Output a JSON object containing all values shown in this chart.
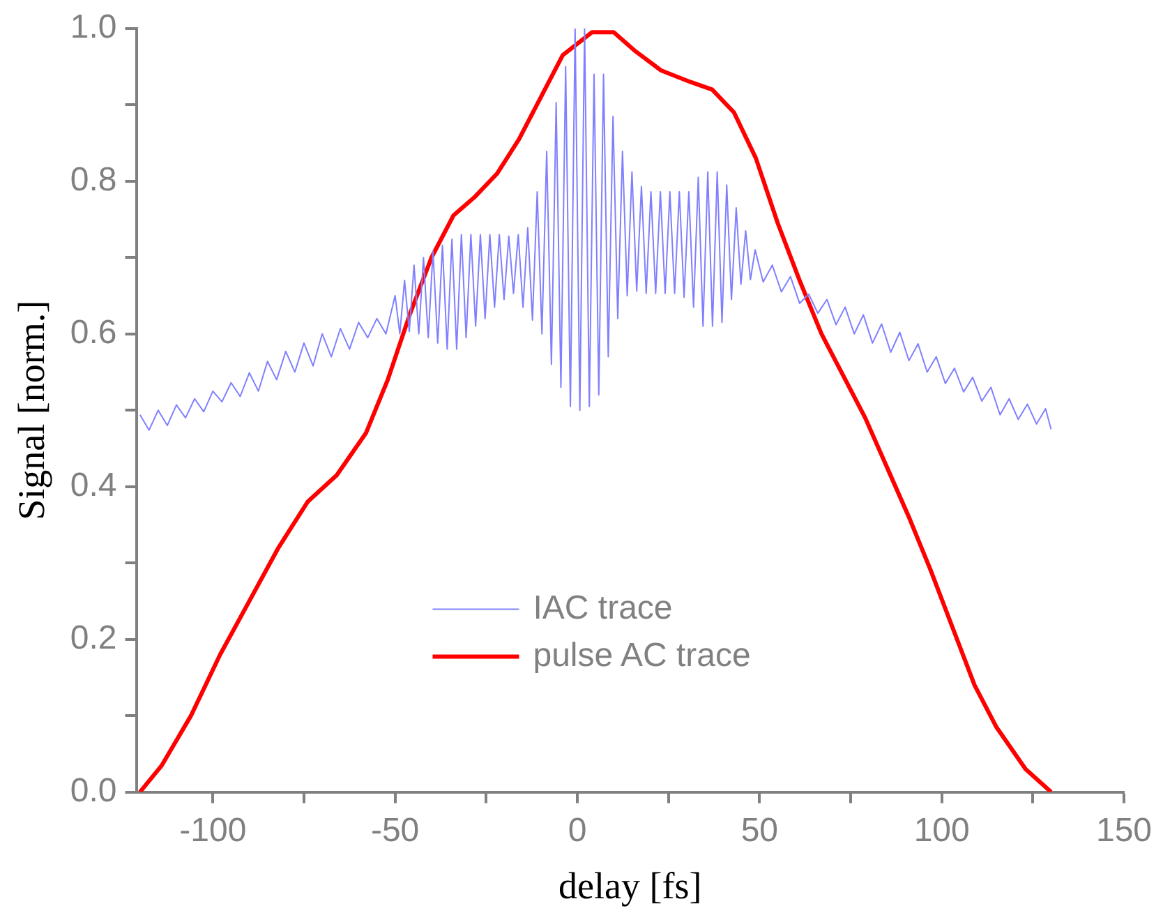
{
  "chart_data": {
    "type": "line",
    "xlabel": "delay [fs]",
    "ylabel": "Signal [norm.]",
    "xlim": [
      -121,
      150
    ],
    "xticks": [
      -100,
      {
        "value": -75,
        "label": null
      },
      -50,
      {
        "value": -25,
        "label": null
      },
      0,
      {
        "value": 25,
        "label": null
      },
      50,
      {
        "value": 75,
        "label": null
      },
      100,
      {
        "value": 125,
        "label": null
      },
      150
    ],
    "ylim": [
      0,
      1
    ],
    "yticks": [
      {
        "value": 0,
        "label": "0.0"
      },
      {
        "value": 0.1,
        "label": null
      },
      {
        "value": 0.2,
        "label": "0.2"
      },
      {
        "value": 0.3,
        "label": null
      },
      {
        "value": 0.4,
        "label": "0.4"
      },
      {
        "value": 0.5,
        "label": null
      },
      {
        "value": 0.6,
        "label": "0.6"
      },
      {
        "value": 0.7,
        "label": null
      },
      {
        "value": 0.8,
        "label": "0.8"
      },
      {
        "value": 0.9,
        "label": null
      },
      {
        "value": 1,
        "label": "1.0"
      }
    ],
    "grid": false,
    "legend": "bottom",
    "marker": "none",
    "line_style": "solid",
    "series": [
      {
        "name": "IAC trace",
        "color": "#8080ff",
        "x": [
          -120,
          -117.5,
          -115,
          -112.5,
          -110,
          -107.5,
          -105,
          -102.5,
          -100,
          -97.5,
          -95,
          -92.5,
          -90,
          -87.5,
          -85,
          -82.5,
          -80,
          -77.5,
          -75,
          -72.5,
          -70,
          -67.5,
          -65,
          -62.5,
          -60,
          -57.5,
          -55,
          -52.5,
          -50,
          -48.7,
          -47.4,
          -46.1,
          -44.8,
          -43.5,
          -42.2,
          -40.9,
          -39.6,
          -38.3,
          -37,
          -35.7,
          -34.4,
          -33.1,
          -31.8,
          -30.5,
          -29.2,
          -27.9,
          -26.6,
          -25.3,
          -24,
          -22.7,
          -21.4,
          -20.1,
          -18.8,
          -17.5,
          -16.2,
          -14.9,
          -13.6,
          -12.3,
          -11,
          -9.7,
          -8.4,
          -7.1,
          -5.8,
          -4.5,
          -3.2,
          -1.9,
          -0.6,
          0.7,
          2,
          3.3,
          4.6,
          5.9,
          7.2,
          8.5,
          9.8,
          11.1,
          12.4,
          13.7,
          15,
          16.3,
          17.6,
          18.9,
          20.2,
          21.5,
          22.8,
          24.1,
          25.4,
          26.7,
          28,
          29.3,
          30.6,
          31.9,
          33.2,
          34.5,
          35.8,
          37.1,
          38.4,
          39.7,
          41,
          42.3,
          43.6,
          44.9,
          46.2,
          47.5,
          48.8,
          51,
          53.5,
          56,
          58.5,
          61,
          63.5,
          66,
          68.5,
          71,
          73.5,
          76,
          78.5,
          81,
          83.5,
          86,
          88.5,
          91,
          93.5,
          96,
          98.5,
          101,
          103.5,
          106,
          108.5,
          111,
          113.5,
          116,
          118.5,
          121,
          123.5,
          126,
          128.5,
          130
        ],
        "values": [
          0.494,
          0.474,
          0.5,
          0.48,
          0.507,
          0.49,
          0.515,
          0.498,
          0.525,
          0.511,
          0.536,
          0.518,
          0.549,
          0.525,
          0.564,
          0.54,
          0.577,
          0.55,
          0.588,
          0.558,
          0.6,
          0.57,
          0.607,
          0.58,
          0.615,
          0.595,
          0.62,
          0.6,
          0.65,
          0.6,
          0.67,
          0.603,
          0.69,
          0.6,
          0.7,
          0.595,
          0.708,
          0.588,
          0.716,
          0.58,
          0.724,
          0.58,
          0.73,
          0.595,
          0.73,
          0.61,
          0.73,
          0.62,
          0.73,
          0.635,
          0.73,
          0.645,
          0.728,
          0.653,
          0.73,
          0.635,
          0.739,
          0.618,
          0.786,
          0.6,
          0.839,
          0.56,
          0.903,
          0.53,
          0.95,
          0.505,
          1.0,
          0.5,
          1.0,
          0.505,
          0.94,
          0.52,
          0.94,
          0.57,
          0.885,
          0.62,
          0.839,
          0.65,
          0.812,
          0.656,
          0.793,
          0.653,
          0.786,
          0.653,
          0.786,
          0.653,
          0.786,
          0.653,
          0.786,
          0.648,
          0.786,
          0.635,
          0.805,
          0.61,
          0.812,
          0.61,
          0.812,
          0.615,
          0.795,
          0.645,
          0.765,
          0.665,
          0.735,
          0.671,
          0.71,
          0.668,
          0.69,
          0.655,
          0.675,
          0.64,
          0.652,
          0.627,
          0.645,
          0.612,
          0.635,
          0.6,
          0.625,
          0.588,
          0.613,
          0.576,
          0.602,
          0.565,
          0.587,
          0.55,
          0.57,
          0.535,
          0.555,
          0.524,
          0.543,
          0.512,
          0.53,
          0.494,
          0.515,
          0.488,
          0.508,
          0.482,
          0.502,
          0.475
        ]
      },
      {
        "name": "pulse AC trace",
        "color": "#ff0000",
        "x": [
          -120,
          -114,
          -106,
          -98,
          -90,
          -82,
          -74,
          -66,
          -58,
          -52,
          -46,
          -40,
          -34,
          -28,
          -22,
          -16,
          -10,
          -4,
          4,
          10,
          16,
          23,
          31,
          37,
          43,
          49,
          55,
          61,
          67,
          73,
          79,
          85,
          91,
          97,
          103,
          109,
          115,
          123,
          130
        ],
        "values": [
          0,
          0.035,
          0.1,
          0.18,
          0.25,
          0.32,
          0.38,
          0.415,
          0.47,
          0.54,
          0.625,
          0.7,
          0.755,
          0.78,
          0.81,
          0.855,
          0.91,
          0.965,
          0.995,
          0.995,
          0.97,
          0.945,
          0.93,
          0.92,
          0.89,
          0.83,
          0.745,
          0.67,
          0.6,
          0.545,
          0.49,
          0.425,
          0.36,
          0.29,
          0.215,
          0.14,
          0.085,
          0.03,
          0
        ]
      }
    ]
  }
}
